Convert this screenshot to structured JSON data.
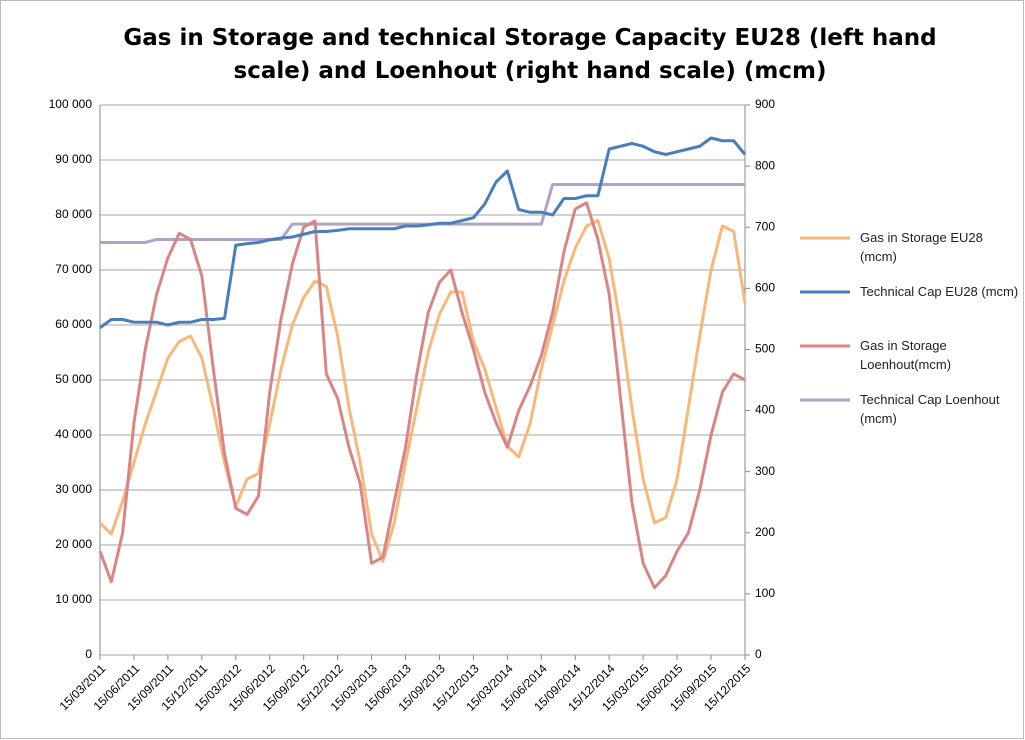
{
  "chart_data": {
    "type": "line",
    "title": "Gas in Storage and technical Storage Capacity EU28 (left hand scale) and Loenhout (right hand scale) (mcm)",
    "x": [
      "15/03/2011",
      "15/04/2011",
      "15/05/2011",
      "15/06/2011",
      "15/07/2011",
      "15/08/2011",
      "15/09/2011",
      "15/10/2011",
      "15/11/2011",
      "15/12/2011",
      "15/01/2012",
      "15/02/2012",
      "15/03/2012",
      "15/04/2012",
      "15/05/2012",
      "15/06/2012",
      "15/07/2012",
      "15/08/2012",
      "15/09/2012",
      "15/10/2012",
      "15/11/2012",
      "15/12/2012",
      "15/01/2013",
      "15/02/2013",
      "15/03/2013",
      "15/04/2013",
      "15/05/2013",
      "15/06/2013",
      "15/07/2013",
      "15/08/2013",
      "15/09/2013",
      "15/10/2013",
      "15/11/2013",
      "15/12/2013",
      "15/01/2014",
      "15/02/2014",
      "15/03/2014",
      "15/04/2014",
      "15/05/2014",
      "15/06/2014",
      "15/07/2014",
      "15/08/2014",
      "15/09/2014",
      "15/10/2014",
      "15/11/2014",
      "15/12/2014",
      "15/01/2015",
      "15/02/2015",
      "15/03/2015",
      "15/04/2015",
      "15/05/2015",
      "15/06/2015",
      "15/07/2015",
      "15/08/2015",
      "15/09/2015",
      "15/10/2015",
      "15/11/2015",
      "15/12/2015"
    ],
    "xticks": [
      "15/03/2011",
      "15/06/2011",
      "15/09/2011",
      "15/12/2011",
      "15/03/2012",
      "15/06/2012",
      "15/09/2012",
      "15/12/2012",
      "15/03/2013",
      "15/06/2013",
      "15/09/2013",
      "15/12/2013",
      "15/03/2014",
      "15/06/2014",
      "15/09/2014",
      "15/12/2014",
      "15/03/2015",
      "15/06/2015",
      "15/09/2015",
      "15/12/2015"
    ],
    "ylim": [
      0,
      100000
    ],
    "yticks": [
      0,
      {
        "value": 10000,
        "label": "10 000"
      },
      {
        "value": 20000,
        "label": "20 000"
      },
      {
        "value": 30000,
        "label": "30 000"
      },
      {
        "value": 40000,
        "label": "40 000"
      },
      {
        "value": 50000,
        "label": "50 000"
      },
      {
        "value": 60000,
        "label": "60 000"
      },
      {
        "value": 70000,
        "label": "70 000"
      },
      {
        "value": 80000,
        "label": "80 000"
      },
      {
        "value": 90000,
        "label": "90 000"
      },
      {
        "value": 100000,
        "label": "100 000"
      }
    ],
    "y2lim": [
      0,
      900
    ],
    "y2ticks": [
      0,
      100,
      200,
      300,
      400,
      500,
      600,
      700,
      800,
      900
    ],
    "grid": true,
    "legend": "right",
    "series": [
      {
        "name": "Gas in Storage EU28 (mcm)",
        "color": "#f9b77a",
        "values": [
          24000,
          22000,
          28000,
          35000,
          42000,
          48000,
          54000,
          57000,
          58000,
          54000,
          45000,
          35000,
          27000,
          32000,
          33000,
          42000,
          52000,
          60000,
          65000,
          68000,
          67000,
          58000,
          45000,
          35000,
          22000,
          17000,
          24000,
          35000,
          45000,
          55000,
          62000,
          66000,
          66000,
          57000,
          52000,
          45000,
          38000,
          36000,
          42000,
          52000,
          60000,
          68000,
          74000,
          78000,
          79000,
          72000,
          60000,
          45000,
          32000,
          24000,
          25000,
          32000,
          45000,
          58000,
          70000,
          78000,
          77000,
          64000
        ]
      },
      {
        "name": "Technical Cap EU28 (mcm)",
        "color": "#4a7ebb",
        "values": [
          59500,
          61000,
          61000,
          60500,
          60500,
          60500,
          60000,
          60500,
          60500,
          61000,
          61000,
          61200,
          74500,
          74800,
          75000,
          75500,
          75800,
          76000,
          76500,
          77000,
          77000,
          77200,
          77500,
          77500,
          77500,
          77500,
          77500,
          78000,
          78000,
          78200,
          78500,
          78500,
          79000,
          79500,
          82000,
          86000,
          88000,
          81000,
          80500,
          80500,
          80000,
          83000,
          83000,
          83500,
          83500,
          92000,
          92500,
          93000,
          92500,
          91500,
          91000,
          91500,
          92000,
          92500,
          94000,
          93500,
          93500,
          91000
        ]
      },
      {
        "name": "Gas in Storage Loenhout(mcm)",
        "color": "#d98585",
        "axis": "y2",
        "values": [
          170,
          120,
          200,
          380,
          500,
          590,
          650,
          690,
          680,
          620,
          470,
          330,
          240,
          230,
          260,
          430,
          550,
          640,
          700,
          710,
          460,
          420,
          340,
          280,
          150,
          160,
          250,
          340,
          460,
          560,
          610,
          630,
          560,
          500,
          430,
          380,
          340,
          400,
          440,
          490,
          560,
          660,
          730,
          740,
          680,
          590,
          420,
          250,
          150,
          110,
          130,
          170,
          200,
          270,
          360,
          430,
          460,
          450
        ]
      },
      {
        "name": "Technical Cap Loenhout (mcm)",
        "color": "#b3a2c7",
        "axis": "y2",
        "values": [
          675,
          675,
          675,
          675,
          675,
          680,
          680,
          680,
          680,
          680,
          680,
          680,
          680,
          680,
          680,
          680,
          680,
          705,
          705,
          705,
          705,
          705,
          705,
          705,
          705,
          705,
          705,
          705,
          705,
          705,
          705,
          705,
          705,
          705,
          705,
          705,
          705,
          705,
          705,
          705,
          770,
          770,
          770,
          770,
          770,
          770,
          770,
          770,
          770,
          770,
          770,
          770,
          770,
          770,
          770,
          770,
          770,
          770
        ]
      }
    ]
  }
}
